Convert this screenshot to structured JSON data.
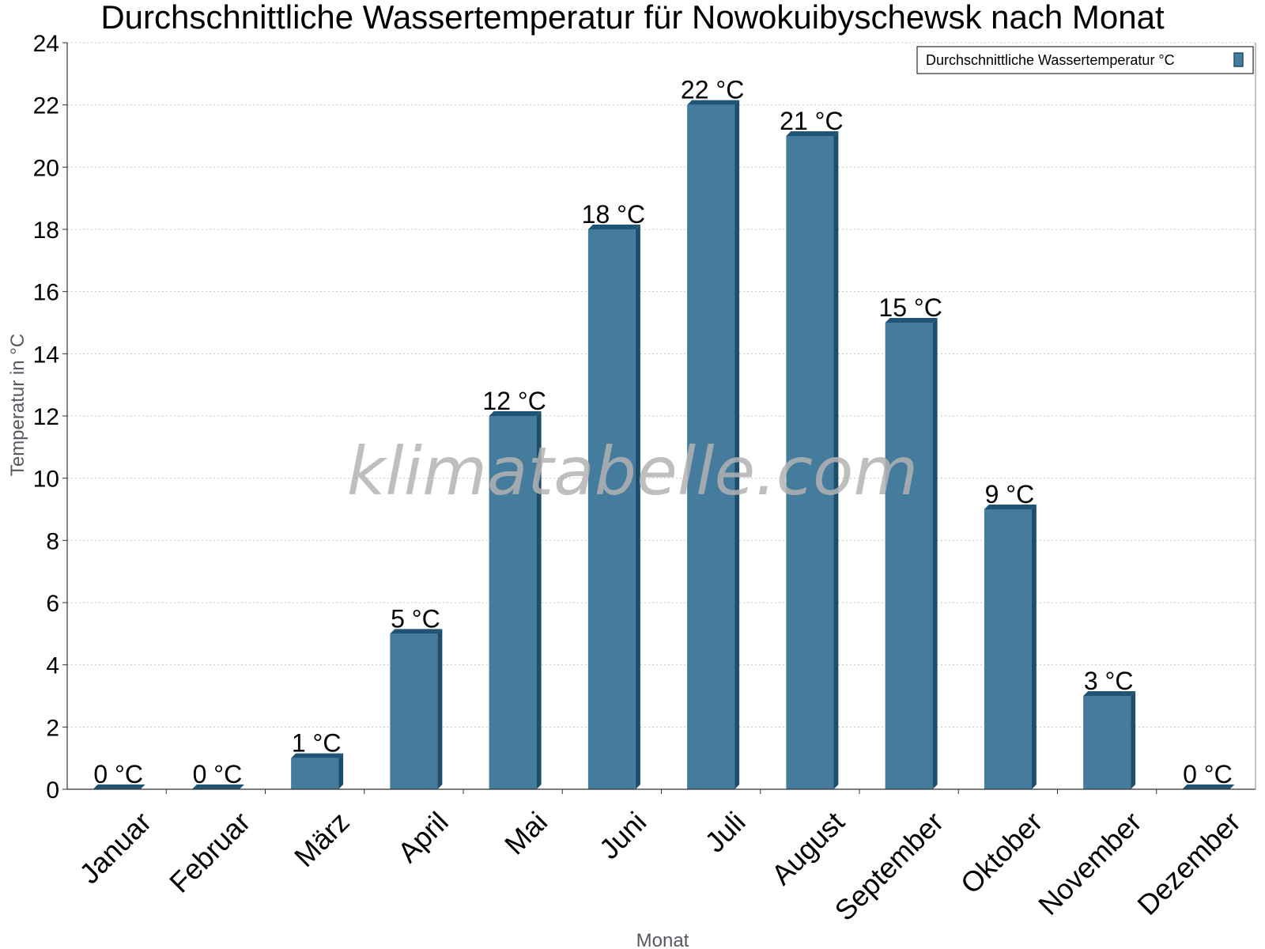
{
  "chart_data": {
    "type": "bar",
    "title": "Durchschnittliche Wassertemperatur für Nowokuibyschewsk nach Monat",
    "xlabel": "Monat",
    "ylabel": "Temperatur in °C",
    "categories": [
      "Januar",
      "Februar",
      "März",
      "April",
      "Mai",
      "Juni",
      "Juli",
      "August",
      "September",
      "Oktober",
      "November",
      "Dezember"
    ],
    "series": [
      {
        "name": "Durchschnittliche Wassertemperatur °C",
        "values": [
          0,
          0,
          1,
          5,
          12,
          18,
          22,
          21,
          15,
          9,
          3,
          0
        ],
        "labels": [
          "0 °C",
          "0 °C",
          "1 °C",
          "5 °C",
          "12 °C",
          "18 °C",
          "22 °C",
          "21 °C",
          "15 °C",
          "9 °C",
          "3 °C",
          "0 °C"
        ]
      }
    ],
    "ylim": [
      0,
      24
    ],
    "yticks": [
      0,
      2,
      4,
      6,
      8,
      10,
      12,
      14,
      16,
      18,
      20,
      22,
      24
    ],
    "grid": true,
    "legend_position": "top-right",
    "watermark": "klimatabelle.com",
    "colors": {
      "bar": "#457b9d",
      "bar_side": "#1d4e6e",
      "bar_top": "#1f5475"
    }
  }
}
